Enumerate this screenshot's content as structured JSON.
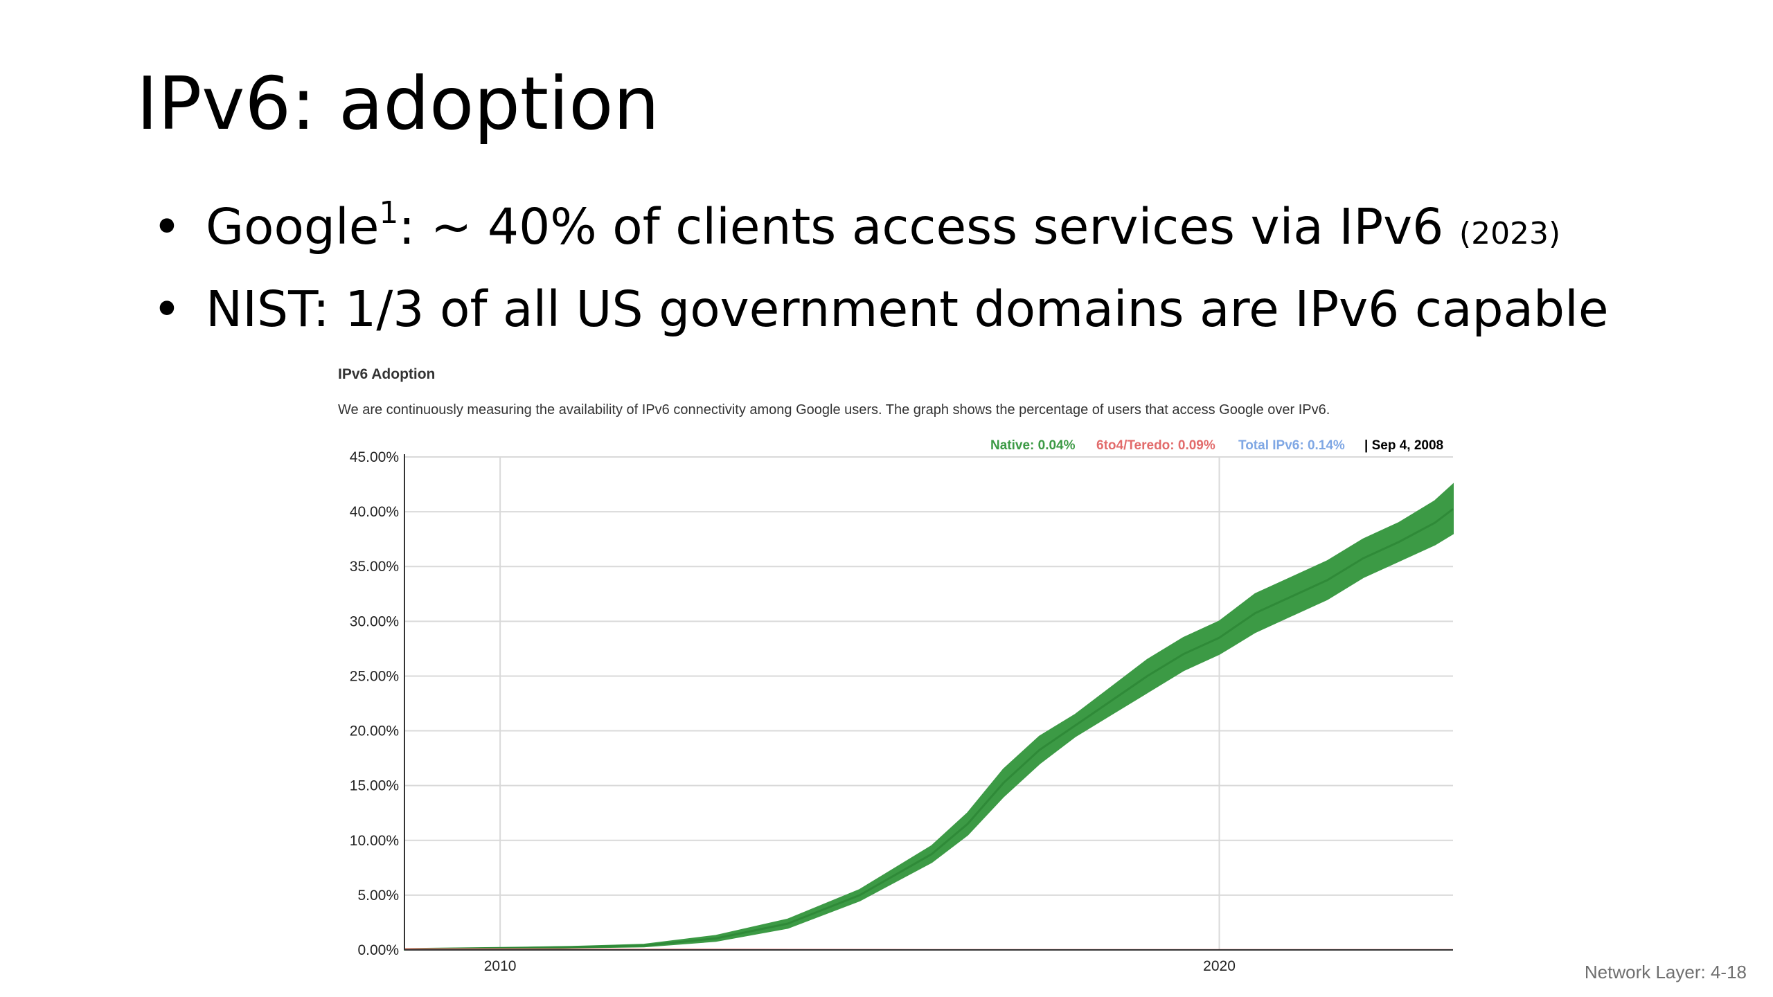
{
  "slide": {
    "title": "IPv6: adoption",
    "bullets": [
      {
        "lead": "Google",
        "superscript": "1",
        "text": ": ~ 40% of clients access services via IPv6 ",
        "small": "(2023)"
      },
      {
        "lead": "NIST: 1/3 of all US government domains are IPv6 capable",
        "superscript": "",
        "text": "",
        "small": ""
      }
    ],
    "footer": "Network Layer: 4-18"
  },
  "chart_data": {
    "type": "area",
    "title": "IPv6 Adoption",
    "subtitle": "We are continuously measuring the availability of IPv6 connectivity among Google users. The graph shows the percentage of users that access Google over IPv6.",
    "legend": {
      "native": "Native: 0.04%",
      "teredo": "6to4/Teredo: 0.09%",
      "total": "Total IPv6: 0.14%",
      "date": "| Sep 4, 2008"
    },
    "colors": {
      "native": "#3c9a45",
      "teredo": "#e26b6b",
      "total": "#7fa7e4",
      "axis": "#333333",
      "grid": "#d9d9d9"
    },
    "x_tick_labels": [
      {
        "value": 2010,
        "label": "2010"
      },
      {
        "value": 2020,
        "label": "2020"
      }
    ],
    "y_tick_labels": [
      "0.00%",
      "5.00%",
      "10.00%",
      "15.00%",
      "20.00%",
      "25.00%",
      "30.00%",
      "35.00%",
      "40.00%",
      "45.00%"
    ],
    "xlim": [
      2008.67,
      2023.25
    ],
    "ylim": [
      0,
      45
    ],
    "legend_position": "top-right",
    "grid": true,
    "series": [
      {
        "name": "Native",
        "color": "#3c9a45",
        "x": [
          2008.67,
          2010,
          2011,
          2012,
          2013,
          2014,
          2015,
          2016,
          2016.5,
          2017,
          2017.5,
          2018,
          2018.5,
          2019,
          2019.5,
          2020,
          2020.5,
          2021,
          2021.5,
          2022,
          2022.5,
          2023,
          2023.25
        ],
        "y_low": [
          0,
          0.1,
          0.2,
          0.3,
          0.8,
          2.0,
          4.5,
          8.0,
          10.5,
          14.0,
          17.0,
          19.5,
          21.5,
          23.5,
          25.5,
          27.0,
          29.0,
          30.5,
          32.0,
          34.0,
          35.5,
          37.0,
          38.0
        ],
        "y_high": [
          0.1,
          0.2,
          0.3,
          0.5,
          1.3,
          2.8,
          5.5,
          9.5,
          12.5,
          16.5,
          19.5,
          21.5,
          24.0,
          26.5,
          28.5,
          30.0,
          32.5,
          34.0,
          35.5,
          37.5,
          39.0,
          41.0,
          42.5
        ]
      },
      {
        "name": "6to4/Teredo",
        "color": "#e26b6b",
        "x": [
          2008.67,
          2012,
          2016,
          2020,
          2023.25
        ],
        "y": [
          0.09,
          0.05,
          0.02,
          0.01,
          0.01
        ]
      }
    ]
  }
}
